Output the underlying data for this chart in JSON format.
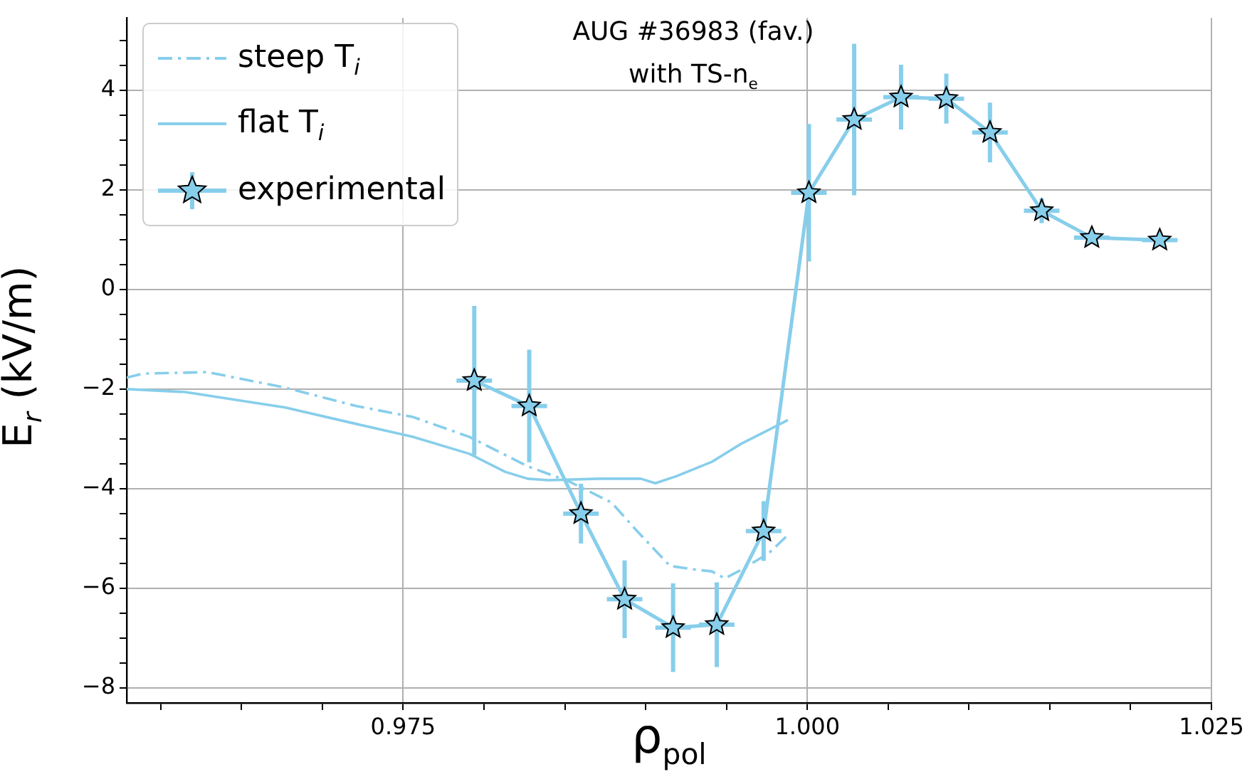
{
  "chart_data": {
    "type": "line",
    "xlabel": "ρ$_{pol}$",
    "ylabel": "E$_{r}$ (kV/m)",
    "annotations": [
      "AUG #36983 (fav.)",
      "with TS-n$_{e}$"
    ],
    "xlim": [
      0.9579,
      1.025
    ],
    "ylim": [
      -8.3,
      5.45
    ],
    "xticks": [
      {
        "value": 0.96,
        "label": null
      },
      {
        "value": 0.965,
        "label": null
      },
      {
        "value": 0.97,
        "label": null
      },
      {
        "value": 0.975,
        "label": "0.975"
      },
      {
        "value": 0.98,
        "label": null
      },
      {
        "value": 0.985,
        "label": null
      },
      {
        "value": 0.99,
        "label": null
      },
      {
        "value": 0.995,
        "label": null
      },
      {
        "value": 1,
        "label": "1.000"
      },
      {
        "value": 1.005,
        "label": null
      },
      {
        "value": 1.01,
        "label": null
      },
      {
        "value": 1.015,
        "label": null
      },
      {
        "value": 1.02,
        "label": null
      },
      {
        "value": 1.025,
        "label": "1.025"
      }
    ],
    "yticks": [
      {
        "value": -8,
        "label": "−8"
      },
      {
        "value": -7.5,
        "label": null
      },
      {
        "value": -7,
        "label": null
      },
      {
        "value": -6.5,
        "label": null
      },
      {
        "value": -6,
        "label": "−6"
      },
      {
        "value": -5.5,
        "label": null
      },
      {
        "value": -5,
        "label": null
      },
      {
        "value": -4.5,
        "label": null
      },
      {
        "value": -4,
        "label": "−4"
      },
      {
        "value": -3.5,
        "label": null
      },
      {
        "value": -3,
        "label": null
      },
      {
        "value": -2.5,
        "label": null
      },
      {
        "value": -2,
        "label": "−2"
      },
      {
        "value": -1.5,
        "label": null
      },
      {
        "value": -1,
        "label": null
      },
      {
        "value": -0.5,
        "label": null
      },
      {
        "value": 0,
        "label": "0"
      },
      {
        "value": 0.5,
        "label": null
      },
      {
        "value": 1,
        "label": null
      },
      {
        "value": 1.5,
        "label": null
      },
      {
        "value": 2,
        "label": "2"
      },
      {
        "value": 2.5,
        "label": null
      },
      {
        "value": 3,
        "label": null
      },
      {
        "value": 3.5,
        "label": null
      },
      {
        "value": 4,
        "label": "4"
      },
      {
        "value": 4.5,
        "label": null
      },
      {
        "value": 5,
        "label": null
      }
    ],
    "grid": true,
    "legend": "top left",
    "series": [
      {
        "name": "steep T$_{i}$",
        "line_style": "dashdot",
        "marker": "none",
        "color": "#87ceeb",
        "x": [
          0.9579,
          0.9589,
          0.9629,
          0.9677,
          0.9721,
          0.9756,
          0.9791,
          0.9827,
          0.9853,
          0.9879,
          0.9893,
          0.9906,
          0.9915,
          0.9932,
          0.9941,
          0.9949,
          0.9959,
          0.9976,
          0.9988
        ],
        "values": [
          -1.77,
          -1.69,
          -1.66,
          -1.97,
          -2.34,
          -2.56,
          -2.96,
          -3.55,
          -3.86,
          -4.28,
          -4.79,
          -5.24,
          -5.55,
          -5.63,
          -5.66,
          -5.8,
          -5.63,
          -5.3,
          -4.93
        ]
      },
      {
        "name": "flat T$_{i}$",
        "line_style": "solid",
        "marker": "none",
        "color": "#87ceeb",
        "x": [
          0.9579,
          0.9615,
          0.9677,
          0.9721,
          0.9756,
          0.9791,
          0.9813,
          0.9827,
          0.984,
          0.9871,
          0.9897,
          0.9906,
          0.9919,
          0.9941,
          0.9959,
          0.9976,
          0.9988
        ],
        "values": [
          -2.0,
          -2.06,
          -2.37,
          -2.7,
          -2.96,
          -3.3,
          -3.66,
          -3.8,
          -3.83,
          -3.8,
          -3.8,
          -3.89,
          -3.75,
          -3.46,
          -3.1,
          -2.82,
          -2.62
        ]
      },
      {
        "name": "experimental",
        "line_style": "solid",
        "marker": "star",
        "color": "#87ceeb",
        "x": [
          0.9794,
          0.9828,
          0.986,
          0.9887,
          0.9917,
          0.9944,
          0.9973,
          1.0001,
          1.0029,
          1.0058,
          1.0086,
          1.0113,
          1.0145,
          1.0176,
          1.0218
        ],
        "values": [
          -1.83,
          -2.34,
          -4.5,
          -6.22,
          -6.79,
          -6.73,
          -4.85,
          1.94,
          3.41,
          3.86,
          3.83,
          3.15,
          1.58,
          1.04,
          0.99
        ],
        "errors": [
          1.5,
          1.13,
          0.6,
          0.78,
          0.89,
          0.85,
          0.6,
          1.38,
          1.52,
          0.65,
          0.5,
          0.6,
          0.25,
          null,
          null
        ],
        "xerrors": [
          0.0011,
          0.0011,
          0.0011,
          0.0011,
          0.0011,
          0.0011,
          0.0011,
          0.0011,
          0.0011,
          0.0011,
          0.0011,
          0.0011,
          0.0011,
          0.0011,
          0.0011
        ]
      }
    ]
  }
}
